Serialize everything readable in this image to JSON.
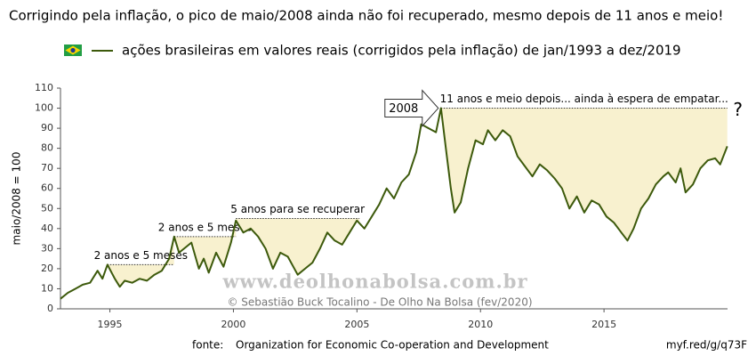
{
  "chart_data": {
    "type": "line",
    "title": "Corrigindo pela inflação, o pico de maio/2008 ainda não foi recuperado, mesmo depois de 11 anos e meio!",
    "ylabel": "maio/2008 = 100",
    "watermark": "www.deolhonabolsa.com.br",
    "copyright": "© Sebastião Buck Tocalino - De Olho Na Bolsa (fev/2020)",
    "source_label": "fonte:",
    "source": "Organization for Economic Co-operation and Development",
    "link": "myf.red/g/q73F",
    "peak_label": "2008",
    "question": "?",
    "xlim": [
      1993,
      2020
    ],
    "xticks": [
      1995,
      2000,
      2005,
      2010,
      2015
    ],
    "ylim": [
      0,
      110
    ],
    "yticks": [
      0,
      10,
      20,
      30,
      40,
      50,
      60,
      70,
      80,
      90,
      100,
      110
    ],
    "fill_color": "#f8f1cf",
    "regions": [
      {
        "x0": 1994.9,
        "x1": 1997.6,
        "level": 22,
        "label": "2 anos e 5 meses"
      },
      {
        "x0": 1997.6,
        "x1": 2000.1,
        "level": 36,
        "label": "2 anos e 5 meses"
      },
      {
        "x0": 2000.1,
        "x1": 2005.1,
        "level": 45,
        "label": "5 anos para se recuperar"
      },
      {
        "x0": 2008.4,
        "x1": 2019.99,
        "level": 100,
        "label": "11 anos e meio depois... ainda à espera de empatar..."
      }
    ],
    "series": [
      {
        "name": "ações brasileiras em valores reais (corrigidos pela inflação) de jan/1993 a dez/2019",
        "color": "#3d5a0c",
        "x": [
          1993.0,
          1993.3,
          1993.6,
          1993.9,
          1994.2,
          1994.5,
          1994.7,
          1994.9,
          1995.2,
          1995.4,
          1995.6,
          1995.9,
          1996.2,
          1996.5,
          1996.8,
          1997.1,
          1997.4,
          1997.6,
          1997.8,
          1998.0,
          1998.3,
          1998.6,
          1998.8,
          1999.0,
          1999.3,
          1999.6,
          1999.9,
          2000.1,
          2000.4,
          2000.7,
          2001.0,
          2001.3,
          2001.6,
          2001.9,
          2002.2,
          2002.6,
          2002.9,
          2003.2,
          2003.5,
          2003.8,
          2004.1,
          2004.4,
          2004.7,
          2005.0,
          2005.3,
          2005.6,
          2005.9,
          2006.2,
          2006.5,
          2006.8,
          2007.1,
          2007.4,
          2007.6,
          2007.9,
          2008.2,
          2008.4,
          2008.6,
          2008.8,
          2008.95,
          2009.2,
          2009.5,
          2009.8,
          2010.1,
          2010.3,
          2010.6,
          2010.9,
          2011.2,
          2011.5,
          2011.8,
          2012.1,
          2012.4,
          2012.7,
          2013.0,
          2013.3,
          2013.6,
          2013.9,
          2014.2,
          2014.5,
          2014.8,
          2015.1,
          2015.4,
          2015.7,
          2015.95,
          2016.2,
          2016.5,
          2016.8,
          2017.1,
          2017.4,
          2017.6,
          2017.9,
          2018.1,
          2018.3,
          2018.6,
          2018.9,
          2019.2,
          2019.5,
          2019.7,
          2019.99
        ],
        "values": [
          5,
          8,
          10,
          12,
          13,
          19,
          15,
          22,
          15,
          11,
          14,
          13,
          15,
          14,
          17,
          19,
          25,
          36,
          28,
          30,
          33,
          20,
          25,
          18,
          28,
          21,
          33,
          44,
          38,
          40,
          36,
          30,
          20,
          28,
          26,
          17,
          20,
          23,
          30,
          38,
          34,
          32,
          38,
          44,
          40,
          46,
          52,
          60,
          55,
          63,
          67,
          78,
          92,
          90,
          88,
          100,
          80,
          60,
          48,
          53,
          70,
          84,
          82,
          89,
          84,
          89,
          86,
          76,
          71,
          66,
          72,
          69,
          65,
          60,
          50,
          56,
          48,
          54,
          52,
          46,
          43,
          38,
          34,
          40,
          50,
          55,
          62,
          66,
          68,
          63,
          70,
          58,
          62,
          70,
          74,
          75,
          72,
          81
        ]
      }
    ]
  }
}
